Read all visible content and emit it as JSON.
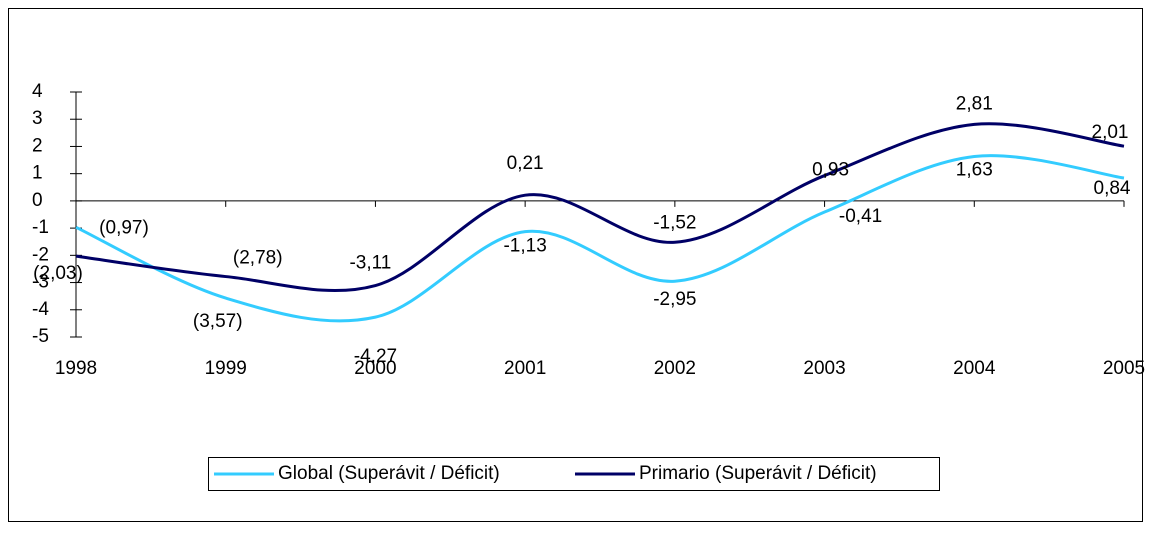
{
  "chart_data": {
    "type": "line",
    "categories": [
      "1998",
      "1999",
      "2000",
      "2001",
      "2002",
      "2003",
      "2004",
      "2005"
    ],
    "series": [
      {
        "name": "Global (Superávit / Déficit)",
        "color": "#33ccff",
        "values": [
          -0.97,
          -3.57,
          -4.27,
          -1.13,
          -2.95,
          -0.41,
          1.63,
          0.84
        ],
        "value_labels": [
          "(0,97)",
          "(3,57)",
          "-4,27",
          "-1,13",
          "-2,95",
          "-0,41",
          "1,63",
          "0,84"
        ]
      },
      {
        "name": "Primario (Superávit / Déficit)",
        "color": "#000066",
        "values": [
          -2.03,
          -2.78,
          -3.11,
          0.21,
          -1.52,
          0.93,
          2.81,
          2.01
        ],
        "value_labels": [
          "(2,03)",
          "(2,78)",
          "-3,11",
          "0,21",
          "-1,52",
          "0,93",
          "2,81",
          "2,01"
        ]
      }
    ],
    "ylim": [
      -5,
      4
    ],
    "yticks": [
      -5,
      -4,
      -3,
      -2,
      -1,
      0,
      1,
      2,
      3,
      4
    ],
    "smooth": true,
    "legend": "bottom"
  }
}
